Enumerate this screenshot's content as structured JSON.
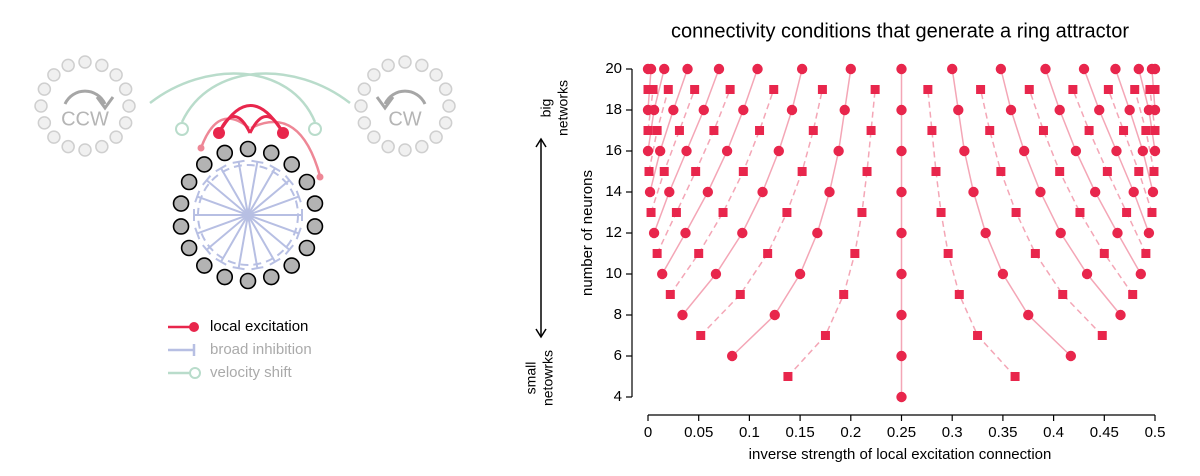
{
  "chart_data": {
    "type": "scatter",
    "title": "connectivity conditions that generate a ring attractor",
    "x_label": "inverse strength of local excitation connection",
    "y_label": "number of neurons",
    "annotations": [
      [
        "big",
        "networks"
      ],
      [
        "small",
        "netowrks"
      ]
    ],
    "xlim": [
      0,
      0.5
    ],
    "ylim": [
      4,
      20
    ],
    "xticks": [
      0,
      0.05,
      0.1,
      0.15,
      0.2,
      0.25,
      0.3,
      0.35,
      0.4,
      0.45,
      0.5
    ],
    "yticks": [
      4,
      6,
      8,
      10,
      12,
      14,
      16,
      18,
      20
    ],
    "color": "#e8264c",
    "line_color": "#f4a6b6",
    "rows": [
      {
        "y": 4,
        "marker": "circle",
        "line": "solid",
        "x": [
          0.25
        ]
      },
      {
        "y": 5,
        "marker": "square",
        "line": "dashed",
        "x": [
          0.138,
          0.362
        ]
      },
      {
        "y": 6,
        "marker": "circle",
        "line": "solid",
        "x": [
          0.083,
          0.25,
          0.417
        ]
      },
      {
        "y": 7,
        "marker": "square",
        "line": "dashed",
        "x": [
          0.052,
          0.175,
          0.325,
          0.448
        ]
      },
      {
        "y": 8,
        "marker": "circle",
        "line": "solid",
        "x": [
          0.034,
          0.125,
          0.25,
          0.375,
          0.466
        ]
      },
      {
        "y": 9,
        "marker": "square",
        "line": "dashed",
        "x": [
          0.022,
          0.091,
          0.193,
          0.307,
          0.409,
          0.478
        ]
      },
      {
        "y": 10,
        "marker": "circle",
        "line": "solid",
        "x": [
          0.014,
          0.067,
          0.15,
          0.25,
          0.35,
          0.433,
          0.486
        ]
      },
      {
        "y": 11,
        "marker": "square",
        "line": "dashed",
        "x": [
          0.009,
          0.05,
          0.118,
          0.204,
          0.296,
          0.382,
          0.45,
          0.491
        ]
      },
      {
        "y": 12,
        "marker": "circle",
        "line": "solid",
        "x": [
          0.006,
          0.037,
          0.093,
          0.167,
          0.25,
          0.333,
          0.407,
          0.463,
          0.494
        ]
      },
      {
        "y": 13,
        "marker": "square",
        "line": "dashed",
        "x": [
          0.003,
          0.028,
          0.074,
          0.137,
          0.211,
          0.289,
          0.363,
          0.426,
          0.472,
          0.497
        ]
      },
      {
        "y": 14,
        "marker": "circle",
        "line": "solid",
        "x": [
          0.002,
          0.021,
          0.059,
          0.113,
          0.179,
          0.25,
          0.321,
          0.387,
          0.441,
          0.479,
          0.498
        ]
      },
      {
        "y": 15,
        "marker": "square",
        "line": "dashed",
        "x": [
          0.001,
          0.016,
          0.047,
          0.094,
          0.152,
          0.216,
          0.284,
          0.348,
          0.406,
          0.453,
          0.484,
          0.499
        ]
      },
      {
        "y": 16,
        "marker": "circle",
        "line": "solid",
        "x": [
          0,
          0.012,
          0.038,
          0.078,
          0.129,
          0.188,
          0.25,
          0.312,
          0.371,
          0.422,
          0.462,
          0.488,
          0.5
        ]
      },
      {
        "y": 17,
        "marker": "square",
        "line": "dashed",
        "x": [
          0,
          0.009,
          0.031,
          0.065,
          0.11,
          0.163,
          0.22,
          0.28,
          0.337,
          0.39,
          0.435,
          0.469,
          0.491,
          0.5
        ]
      },
      {
        "y": 18,
        "marker": "circle",
        "line": "solid",
        "x": [
          0,
          0.006,
          0.025,
          0.055,
          0.094,
          0.142,
          0.194,
          0.25,
          0.306,
          0.358,
          0.406,
          0.445,
          0.475,
          0.494,
          0.5
        ]
      },
      {
        "y": 19,
        "marker": "square",
        "line": "dashed",
        "x": [
          0,
          0.005,
          0.02,
          0.046,
          0.081,
          0.124,
          0.172,
          0.224,
          0.276,
          0.328,
          0.376,
          0.419,
          0.454,
          0.48,
          0.495,
          0.5
        ]
      },
      {
        "y": 20,
        "marker": "circle",
        "line": "solid",
        "x": [
          0,
          0.003,
          0.016,
          0.039,
          0.07,
          0.108,
          0.152,
          0.2,
          0.25,
          0.3,
          0.348,
          0.392,
          0.43,
          0.461,
          0.484,
          0.497,
          0.5
        ]
      }
    ]
  },
  "diagram": {
    "left_ring": "CCW",
    "right_ring": "CW",
    "legend": [
      {
        "label": "local excitation",
        "color": "#e8264c"
      },
      {
        "label": "broad inhibition",
        "color": "#b7bfe3"
      },
      {
        "label": "velocity shift",
        "color": "#b9dccb"
      }
    ]
  }
}
